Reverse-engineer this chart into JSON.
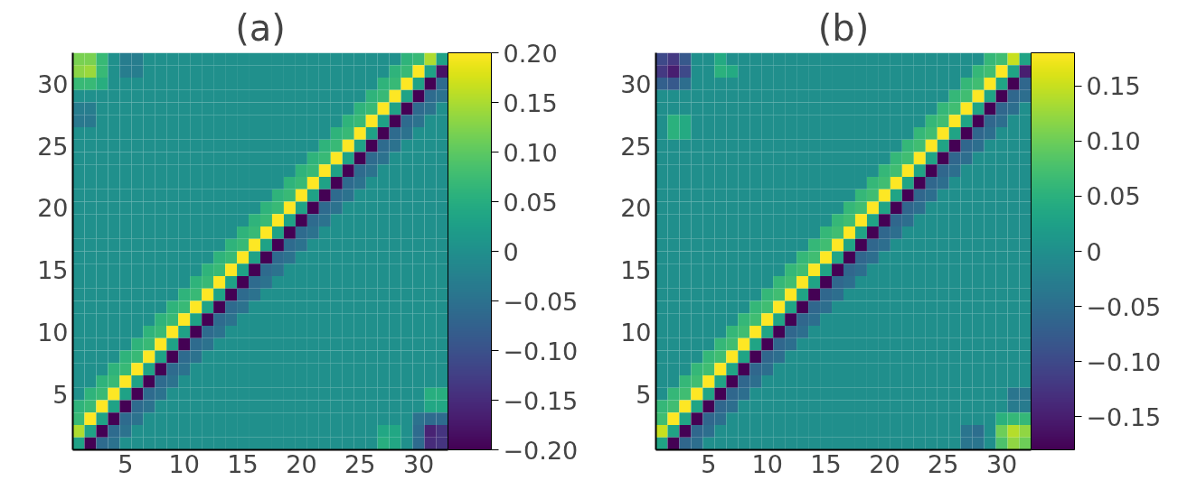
{
  "chart_data": [
    {
      "type": "heatmap",
      "title": "(a)",
      "x": [
        1,
        2,
        3,
        4,
        5,
        6,
        7,
        8,
        9,
        10,
        11,
        12,
        13,
        14,
        15,
        16,
        17,
        18,
        19,
        20,
        21,
        22,
        23,
        24,
        25,
        26,
        27,
        28,
        29,
        30,
        31,
        32
      ],
      "y": [
        32,
        31,
        30,
        29,
        28,
        27,
        26,
        25,
        24,
        23,
        22,
        21,
        20,
        19,
        18,
        17,
        16,
        15,
        14,
        13,
        12,
        11,
        10,
        9,
        8,
        7,
        6,
        5,
        4,
        3,
        2,
        1
      ],
      "xlim": [
        0.5,
        32.5
      ],
      "xticks": [
        5,
        10,
        15,
        20,
        25,
        30
      ],
      "ylim": [
        0.5,
        32.5
      ],
      "yticks": [
        5,
        10,
        15,
        20,
        25,
        30
      ],
      "clim": [
        -0.2,
        0.2
      ],
      "cticks": [
        {
          "value": 0.2,
          "label": "0.20"
        },
        0.15,
        {
          "value": 0.1,
          "label": "0.10"
        },
        0.05,
        0,
        {
          "value": -0.05,
          "label": "−0.05"
        },
        {
          "value": -0.1,
          "label": "−0.10"
        },
        {
          "value": -0.15,
          "label": "−0.15"
        },
        {
          "value": -0.2,
          "label": "−0.20"
        }
      ],
      "cells": [
        [
          0.12,
          0.12,
          0.07,
          0,
          -0.03,
          -0.03,
          0,
          0,
          0,
          0,
          0,
          0,
          0,
          0,
          0,
          0,
          0,
          0,
          0,
          0,
          0,
          0,
          0,
          0,
          0,
          0,
          0,
          0,
          0.06,
          0.07,
          0.15,
          0.03
        ],
        [
          0.13,
          0.14,
          0.07,
          0,
          -0.03,
          -0.03,
          0,
          0,
          0,
          0,
          0,
          0,
          0,
          0,
          0,
          0,
          0,
          0,
          0,
          0,
          0,
          0,
          0,
          0,
          0,
          0,
          0,
          0.06,
          0.07,
          0.2,
          0.03,
          -0.18
        ],
        [
          0.07,
          0.07,
          0.05,
          0,
          0,
          0,
          0,
          0,
          0,
          0,
          0,
          0,
          0,
          0,
          0,
          0,
          0,
          0,
          0,
          0,
          0,
          0,
          0,
          0,
          0,
          0,
          0.06,
          0.07,
          0.2,
          0.03,
          -0.2,
          -0.06
        ],
        [
          0,
          0,
          0,
          0,
          0,
          0,
          0,
          0,
          0,
          0,
          0,
          0,
          0,
          0,
          0,
          0,
          0,
          0,
          0,
          0,
          0,
          0,
          0,
          0,
          0,
          0.06,
          0.07,
          0.2,
          0.03,
          -0.2,
          -0.06,
          -0.05
        ],
        [
          -0.03,
          -0.03,
          0,
          0,
          0,
          0,
          0,
          0,
          0,
          0,
          0,
          0,
          0,
          0,
          0,
          0,
          0,
          0,
          0,
          0,
          0,
          0,
          0,
          0,
          0.06,
          0.07,
          0.2,
          0.03,
          -0.2,
          -0.06,
          -0.05,
          0
        ],
        [
          -0.04,
          -0.04,
          0,
          0,
          0,
          0,
          0,
          0,
          0,
          0,
          0,
          0,
          0,
          0,
          0,
          0,
          0,
          0,
          0,
          0,
          0,
          0,
          0,
          0.06,
          0.07,
          0.2,
          0.03,
          -0.2,
          -0.06,
          -0.05,
          0,
          0
        ],
        [
          0,
          0,
          0,
          0,
          0,
          0,
          0,
          0,
          0,
          0,
          0,
          0,
          0,
          0,
          0,
          0,
          0,
          0,
          0,
          0,
          0,
          0,
          0.06,
          0.07,
          0.2,
          0.03,
          -0.2,
          -0.06,
          -0.05,
          0,
          0,
          0
        ],
        [
          0,
          0,
          0,
          0,
          0,
          0,
          0,
          0,
          0,
          0,
          0,
          0,
          0,
          0,
          0,
          0,
          0,
          0,
          0,
          0,
          0,
          0.06,
          0.07,
          0.2,
          0.03,
          -0.2,
          -0.06,
          -0.05,
          0,
          0,
          0,
          0
        ],
        [
          0,
          0,
          0,
          0,
          0,
          0,
          0,
          0,
          0,
          0,
          0,
          0,
          0,
          0,
          0,
          0,
          0,
          0,
          0,
          0,
          0.06,
          0.07,
          0.2,
          0.03,
          -0.2,
          -0.06,
          -0.05,
          0,
          0,
          0,
          0,
          0
        ],
        [
          0,
          0,
          0,
          0,
          0,
          0,
          0,
          0,
          0,
          0,
          0,
          0,
          0,
          0,
          0,
          0,
          0,
          0,
          0,
          0.06,
          0.07,
          0.2,
          0.03,
          -0.2,
          -0.06,
          -0.05,
          0,
          0,
          0,
          0,
          0,
          0
        ],
        [
          0,
          0,
          0,
          0,
          0,
          0,
          0,
          0,
          0,
          0,
          0,
          0,
          0,
          0,
          0,
          0,
          0,
          0,
          0.06,
          0.07,
          0.2,
          0.03,
          -0.2,
          -0.06,
          -0.05,
          0,
          0,
          0,
          0,
          0,
          0,
          0
        ],
        [
          0,
          0,
          0,
          0,
          0,
          0,
          0,
          0,
          0,
          0,
          0,
          0,
          0,
          0,
          0,
          0,
          0,
          0.06,
          0.07,
          0.2,
          0.03,
          -0.2,
          -0.06,
          -0.05,
          0,
          0,
          0,
          0,
          0,
          0,
          0,
          0
        ],
        [
          0,
          0,
          0,
          0,
          0,
          0,
          0,
          0,
          0,
          0,
          0,
          0,
          0,
          0,
          0,
          0,
          0.06,
          0.07,
          0.2,
          0.03,
          -0.2,
          -0.06,
          -0.05,
          0,
          0,
          0,
          0,
          0,
          0,
          0,
          0,
          0
        ],
        [
          0,
          0,
          0,
          0,
          0,
          0,
          0,
          0,
          0,
          0,
          0,
          0,
          0,
          0,
          0,
          0.06,
          0.07,
          0.2,
          0.03,
          -0.2,
          -0.06,
          -0.05,
          0,
          0,
          0,
          0,
          0,
          0,
          0,
          0,
          0,
          0
        ],
        [
          0,
          0,
          0,
          0,
          0,
          0,
          0,
          0,
          0,
          0,
          0,
          0,
          0,
          0,
          0.06,
          0.07,
          0.2,
          0.03,
          -0.2,
          -0.06,
          -0.05,
          0,
          0,
          0,
          0,
          0,
          0,
          0,
          0,
          0,
          0,
          0
        ],
        [
          0,
          0,
          0,
          0,
          0,
          0,
          0,
          0,
          0,
          0,
          0,
          0,
          0,
          0.06,
          0.07,
          0.2,
          0.03,
          -0.2,
          -0.06,
          -0.05,
          0,
          0,
          0,
          0,
          0,
          0,
          0,
          0,
          0,
          0,
          0,
          0
        ],
        [
          0,
          0,
          0,
          0,
          0,
          0,
          0,
          0,
          0,
          0,
          0,
          0,
          0.06,
          0.07,
          0.2,
          0.03,
          -0.2,
          -0.06,
          -0.05,
          0,
          0,
          0,
          0,
          0,
          0,
          0,
          0,
          0,
          0,
          0,
          0,
          0
        ],
        [
          0,
          0,
          0,
          0,
          0,
          0,
          0,
          0,
          0,
          0,
          0,
          0.06,
          0.07,
          0.2,
          0.03,
          -0.2,
          -0.06,
          -0.05,
          0,
          0,
          0,
          0,
          0,
          0,
          0,
          0,
          0,
          0,
          0,
          0,
          0,
          0
        ],
        [
          0,
          0,
          0,
          0,
          0,
          0,
          0,
          0,
          0,
          0,
          0.06,
          0.07,
          0.2,
          0.03,
          -0.2,
          -0.06,
          -0.05,
          0,
          0,
          0,
          0,
          0,
          0,
          0,
          0,
          0,
          0,
          0,
          0,
          0,
          0,
          0
        ],
        [
          0,
          0,
          0,
          0,
          0,
          0,
          0,
          0,
          0,
          0.06,
          0.07,
          0.2,
          0.03,
          -0.2,
          -0.06,
          -0.05,
          0,
          0,
          0,
          0,
          0,
          0,
          0,
          0,
          0,
          0,
          0,
          0,
          0,
          0,
          0,
          0
        ],
        [
          0,
          0,
          0,
          0,
          0,
          0,
          0,
          0,
          0.06,
          0.07,
          0.2,
          0.03,
          -0.2,
          -0.06,
          -0.05,
          0,
          0,
          0,
          0,
          0,
          0,
          0,
          0,
          0,
          0,
          0,
          0,
          0,
          0,
          0,
          0,
          0
        ],
        [
          0,
          0,
          0,
          0,
          0,
          0,
          0,
          0.06,
          0.07,
          0.2,
          0.03,
          -0.2,
          -0.06,
          -0.05,
          0,
          0,
          0,
          0,
          0,
          0,
          0,
          0,
          0,
          0,
          0,
          0,
          0,
          0,
          0,
          0,
          0,
          0
        ],
        [
          0,
          0,
          0,
          0,
          0,
          0,
          0.06,
          0.07,
          0.2,
          0.03,
          -0.2,
          -0.06,
          -0.05,
          0,
          0,
          0,
          0,
          0,
          0,
          0,
          0,
          0,
          0,
          0,
          0,
          0,
          0,
          0,
          0,
          0,
          0,
          0
        ],
        [
          0,
          0,
          0,
          0,
          0,
          0.06,
          0.07,
          0.2,
          0.03,
          -0.2,
          -0.06,
          -0.05,
          0,
          0,
          0,
          0,
          0,
          0,
          0,
          0,
          0,
          0,
          0,
          0,
          0,
          0,
          0,
          0,
          0,
          0,
          0,
          0
        ],
        [
          0,
          0,
          0,
          0,
          0.06,
          0.07,
          0.2,
          0.03,
          -0.2,
          -0.06,
          -0.05,
          0,
          0,
          0,
          0,
          0,
          0,
          0,
          0,
          0,
          0,
          0,
          0,
          0,
          0,
          0,
          0,
          0,
          0,
          0,
          0,
          0
        ],
        [
          0,
          0,
          0,
          0.06,
          0.07,
          0.2,
          0.03,
          -0.2,
          -0.06,
          -0.05,
          0,
          0,
          0,
          0,
          0,
          0,
          0,
          0,
          0,
          0,
          0,
          0,
          0,
          0,
          0,
          0,
          0,
          0,
          0,
          0,
          0,
          0
        ],
        [
          0,
          0,
          0.06,
          0.07,
          0.2,
          0.03,
          -0.2,
          -0.06,
          -0.05,
          0,
          0,
          0,
          0,
          0,
          0,
          0,
          0,
          0,
          0,
          0,
          0,
          0,
          0,
          0,
          0,
          0,
          0,
          0,
          0,
          0,
          0,
          0
        ],
        [
          0,
          0.06,
          0.07,
          0.2,
          0.03,
          -0.2,
          -0.06,
          -0.05,
          0,
          0,
          0,
          0,
          0,
          0,
          0,
          0,
          0,
          0,
          0,
          0,
          0,
          0,
          0,
          0,
          0,
          0,
          0,
          0,
          0,
          0,
          0.05,
          0.05
        ],
        [
          0.06,
          0.07,
          0.2,
          0.03,
          -0.2,
          -0.06,
          -0.05,
          0,
          0,
          0,
          0,
          0,
          0,
          0,
          0,
          0,
          0,
          0,
          0,
          0,
          0,
          0,
          0,
          0,
          0,
          0,
          0,
          0,
          0,
          0,
          0.04,
          0.04
        ],
        [
          0.07,
          0.2,
          0.03,
          -0.2,
          -0.06,
          -0.05,
          0,
          0,
          0,
          0,
          0,
          0,
          0,
          0,
          0,
          0,
          0,
          0,
          0,
          0,
          0,
          0,
          0,
          0,
          0,
          0,
          0,
          0,
          0,
          -0.05,
          -0.06,
          -0.06
        ],
        [
          0.15,
          0.03,
          -0.2,
          -0.06,
          -0.05,
          0,
          0,
          0,
          0,
          0,
          0,
          0,
          0,
          0,
          0,
          0,
          0,
          0,
          0,
          0,
          0,
          0,
          0,
          0,
          0,
          0,
          0.04,
          0.04,
          0,
          -0.06,
          -0.16,
          -0.14
        ],
        [
          0.03,
          -0.2,
          -0.06,
          -0.05,
          0,
          0,
          0,
          0,
          0,
          0,
          0,
          0,
          0,
          0,
          0,
          0,
          0,
          0,
          0,
          0,
          0,
          0,
          0,
          0,
          0,
          0,
          0.05,
          0.04,
          0,
          -0.06,
          -0.15,
          -0.14
        ]
      ]
    },
    {
      "type": "heatmap",
      "title": "(b)",
      "x": [
        1,
        2,
        3,
        4,
        5,
        6,
        7,
        8,
        9,
        10,
        11,
        12,
        13,
        14,
        15,
        16,
        17,
        18,
        19,
        20,
        21,
        22,
        23,
        24,
        25,
        26,
        27,
        28,
        29,
        30,
        31,
        32
      ],
      "y": [
        32,
        31,
        30,
        29,
        28,
        27,
        26,
        25,
        24,
        23,
        22,
        21,
        20,
        19,
        18,
        17,
        16,
        15,
        14,
        13,
        12,
        11,
        10,
        9,
        8,
        7,
        6,
        5,
        4,
        3,
        2,
        1
      ],
      "xlim": [
        0.5,
        32.5
      ],
      "xticks": [
        5,
        10,
        15,
        20,
        25,
        30
      ],
      "ylim": [
        0.5,
        32.5
      ],
      "yticks": [
        5,
        10,
        15,
        20,
        25,
        30
      ],
      "clim": [
        -0.18,
        0.18
      ],
      "cticks": [
        0.15,
        {
          "value": 0.1,
          "label": "0.10"
        },
        0.05,
        0,
        {
          "value": -0.05,
          "label": "−0.05"
        },
        {
          "value": -0.1,
          "label": "−0.10"
        },
        {
          "value": -0.15,
          "label": "−0.15"
        }
      ],
      "cells": [
        [
          -0.1,
          -0.12,
          -0.08,
          0,
          0,
          0.04,
          0,
          0,
          0,
          0,
          0,
          0,
          0,
          0,
          0,
          0,
          0,
          0,
          0,
          0,
          0,
          0,
          0,
          0,
          0,
          0,
          0,
          0,
          0.06,
          0.07,
          0.15,
          0.03
        ],
        [
          -0.12,
          -0.15,
          -0.1,
          0,
          0,
          0.05,
          0.04,
          0,
          0,
          0,
          0,
          0,
          0,
          0,
          0,
          0,
          0,
          0,
          0,
          0,
          0,
          0,
          0,
          0,
          0,
          0,
          0,
          0.06,
          0.07,
          0.18,
          0.03,
          -0.15
        ],
        [
          -0.07,
          -0.08,
          -0.05,
          0,
          0,
          0,
          0,
          0,
          0,
          0,
          0,
          0,
          0,
          0,
          0,
          0,
          0,
          0,
          0,
          0,
          0,
          0,
          0,
          0,
          0,
          0,
          0.06,
          0.07,
          0.18,
          0.03,
          -0.18,
          -0.06
        ],
        [
          0,
          0,
          0,
          0,
          0,
          0,
          0,
          0,
          0,
          0,
          0,
          0,
          0,
          0,
          0,
          0,
          0,
          0,
          0,
          0,
          0,
          0,
          0,
          0,
          0,
          0.06,
          0.07,
          0.18,
          0.03,
          -0.18,
          -0.06,
          -0.05
        ],
        [
          0,
          0,
          0,
          0,
          0,
          0,
          0,
          0,
          0,
          0,
          0,
          0,
          0,
          0,
          0,
          0,
          0,
          0,
          0,
          0,
          0,
          0,
          0,
          0,
          0.06,
          0.07,
          0.18,
          0.03,
          -0.18,
          -0.06,
          -0.05,
          0
        ],
        [
          0,
          0.05,
          0.04,
          0,
          0,
          0,
          0,
          0,
          0,
          0,
          0,
          0,
          0,
          0,
          0,
          0,
          0,
          0,
          0,
          0,
          0,
          0,
          0,
          0.06,
          0.07,
          0.18,
          0.03,
          -0.18,
          -0.06,
          -0.05,
          0,
          0
        ],
        [
          0,
          0.05,
          0.04,
          0,
          0,
          0,
          0,
          0,
          0,
          0,
          0,
          0,
          0,
          0,
          0,
          0,
          0,
          0,
          0,
          0,
          0,
          0,
          0.06,
          0.07,
          0.18,
          0.03,
          -0.18,
          -0.06,
          -0.05,
          0,
          0,
          0
        ],
        [
          0,
          0,
          0,
          0,
          0,
          0,
          0,
          0,
          0,
          0,
          0,
          0,
          0,
          0,
          0,
          0,
          0,
          0,
          0,
          0,
          0,
          0.06,
          0.07,
          0.18,
          0.03,
          -0.18,
          -0.06,
          -0.05,
          0,
          0,
          0,
          0
        ],
        [
          0,
          0,
          0,
          0,
          0,
          0,
          0,
          0,
          0,
          0,
          0,
          0,
          0,
          0,
          0,
          0,
          0,
          0,
          0,
          0,
          0.06,
          0.07,
          0.18,
          0.03,
          -0.18,
          -0.06,
          -0.05,
          0,
          0,
          0,
          0,
          0
        ],
        [
          0,
          0,
          0,
          0,
          0,
          0,
          0,
          0,
          0,
          0,
          0,
          0,
          0,
          0,
          0,
          0,
          0,
          0,
          0,
          0.06,
          0.07,
          0.18,
          0.03,
          -0.18,
          -0.06,
          -0.05,
          0,
          0,
          0,
          0,
          0,
          0
        ],
        [
          0,
          0,
          0,
          0,
          0,
          0,
          0,
          0,
          0,
          0,
          0,
          0,
          0,
          0,
          0,
          0,
          0,
          0,
          0.06,
          0.07,
          0.18,
          0.03,
          -0.18,
          -0.06,
          -0.05,
          0,
          0,
          0,
          0,
          0,
          0,
          0
        ],
        [
          0,
          0,
          0,
          0,
          0,
          0,
          0,
          0,
          0,
          0,
          0,
          0,
          0,
          0,
          0,
          0,
          0,
          0.06,
          0.07,
          0.18,
          0.03,
          -0.18,
          -0.06,
          -0.05,
          0,
          0,
          0,
          0,
          0,
          0,
          0,
          0
        ],
        [
          0,
          0,
          0,
          0,
          0,
          0,
          0,
          0,
          0,
          0,
          0,
          0,
          0,
          0,
          0,
          0,
          0.06,
          0.07,
          0.18,
          0.03,
          -0.18,
          -0.06,
          -0.05,
          0,
          0,
          0,
          0,
          0,
          0,
          0,
          0,
          0
        ],
        [
          0,
          0,
          0,
          0,
          0,
          0,
          0,
          0,
          0,
          0,
          0,
          0,
          0,
          0,
          0,
          0.06,
          0.07,
          0.18,
          0.03,
          -0.18,
          -0.06,
          -0.05,
          0,
          0,
          0,
          0,
          0,
          0,
          0,
          0,
          0,
          0
        ],
        [
          0,
          0,
          0,
          0,
          0,
          0,
          0,
          0,
          0,
          0,
          0,
          0,
          0,
          0,
          0.06,
          0.07,
          0.18,
          0.03,
          -0.18,
          -0.06,
          -0.05,
          0,
          0,
          0,
          0,
          0,
          0,
          0,
          0,
          0,
          0,
          0
        ],
        [
          0,
          0,
          0,
          0,
          0,
          0,
          0,
          0,
          0,
          0,
          0,
          0,
          0,
          0.06,
          0.07,
          0.18,
          0.03,
          -0.18,
          -0.06,
          -0.05,
          0,
          0,
          0,
          0,
          0,
          0,
          0,
          0,
          0,
          0,
          0,
          0
        ],
        [
          0,
          0,
          0,
          0,
          0,
          0,
          0,
          0,
          0,
          0,
          0,
          0,
          0.06,
          0.07,
          0.18,
          0.03,
          -0.18,
          -0.06,
          -0.05,
          0,
          0,
          0,
          0,
          0,
          0,
          0,
          0,
          0,
          0,
          0,
          0,
          0
        ],
        [
          0,
          0,
          0,
          0,
          0,
          0,
          0,
          0,
          0,
          0,
          0,
          0.06,
          0.07,
          0.18,
          0.03,
          -0.18,
          -0.06,
          -0.05,
          0,
          0,
          0,
          0,
          0,
          0,
          0,
          0,
          0,
          0,
          0,
          0,
          0,
          0
        ],
        [
          0,
          0,
          0,
          0,
          0,
          0,
          0,
          0,
          0,
          0,
          0.06,
          0.07,
          0.18,
          0.03,
          -0.18,
          -0.06,
          -0.05,
          0,
          0,
          0,
          0,
          0,
          0,
          0,
          0,
          0,
          0,
          0,
          0,
          0,
          0,
          0
        ],
        [
          0,
          0,
          0,
          0,
          0,
          0,
          0,
          0,
          0,
          0.06,
          0.07,
          0.18,
          0.03,
          -0.18,
          -0.06,
          -0.05,
          0,
          0,
          0,
          0,
          0,
          0,
          0,
          0,
          0,
          0,
          0,
          0,
          0,
          0,
          0,
          0
        ],
        [
          0,
          0,
          0,
          0,
          0,
          0,
          0,
          0,
          0.06,
          0.07,
          0.18,
          0.03,
          -0.18,
          -0.06,
          -0.05,
          0,
          0,
          0,
          0,
          0,
          0,
          0,
          0,
          0,
          0,
          0,
          0,
          0,
          0,
          0,
          0,
          0
        ],
        [
          0,
          0,
          0,
          0,
          0,
          0,
          0,
          0.06,
          0.07,
          0.18,
          0.03,
          -0.18,
          -0.06,
          -0.05,
          0,
          0,
          0,
          0,
          0,
          0,
          0,
          0,
          0,
          0,
          0,
          0,
          0,
          0,
          0,
          0,
          0,
          0
        ],
        [
          0,
          0,
          0,
          0,
          0,
          0,
          0.06,
          0.07,
          0.18,
          0.03,
          -0.18,
          -0.06,
          -0.05,
          0,
          0,
          0,
          0,
          0,
          0,
          0,
          0,
          0,
          0,
          0,
          0,
          0,
          0,
          0,
          0,
          0,
          0,
          0
        ],
        [
          0,
          0,
          0,
          0,
          0,
          0.06,
          0.07,
          0.18,
          0.03,
          -0.18,
          -0.06,
          -0.05,
          0,
          0,
          0,
          0,
          0,
          0,
          0,
          0,
          0,
          0,
          0,
          0,
          0,
          0,
          0,
          0,
          0,
          0,
          0,
          0
        ],
        [
          0,
          0,
          0,
          0,
          0.06,
          0.07,
          0.18,
          0.03,
          -0.18,
          -0.06,
          -0.05,
          0,
          0,
          0,
          0,
          0,
          0,
          0,
          0,
          0,
          0,
          0,
          0,
          0,
          0,
          0,
          0,
          0,
          0,
          0,
          0,
          0
        ],
        [
          0,
          0,
          0,
          0.06,
          0.07,
          0.18,
          0.03,
          -0.18,
          -0.06,
          -0.05,
          0,
          0,
          0,
          0,
          0,
          0,
          0,
          0,
          0,
          0,
          0,
          0,
          0,
          0,
          0,
          0,
          0,
          0,
          0,
          0,
          0,
          0
        ],
        [
          0,
          0,
          0.06,
          0.07,
          0.18,
          0.03,
          -0.18,
          -0.06,
          -0.05,
          0,
          0,
          0,
          0,
          0,
          0,
          0,
          0,
          0,
          0,
          0,
          0,
          0,
          0,
          0,
          0,
          0,
          0,
          0,
          0,
          0,
          0,
          0
        ],
        [
          0,
          0.06,
          0.07,
          0.18,
          0.03,
          -0.18,
          -0.06,
          -0.05,
          0,
          0,
          0,
          0,
          0,
          0,
          0,
          0,
          0,
          0,
          0,
          0,
          0,
          0,
          0,
          0,
          0,
          0,
          0,
          0,
          0,
          0,
          -0.04,
          -0.04
        ],
        [
          0.06,
          0.07,
          0.18,
          0.03,
          -0.18,
          -0.06,
          -0.05,
          0,
          0,
          0,
          0,
          0,
          0,
          0,
          0,
          0,
          0,
          0,
          0,
          0,
          0,
          0,
          0,
          0,
          0,
          0,
          0,
          0,
          0,
          0,
          -0.03,
          -0.03
        ],
        [
          0.07,
          0.18,
          0.03,
          -0.18,
          -0.06,
          -0.05,
          0,
          0,
          0,
          0,
          0,
          0,
          0,
          0,
          0,
          0,
          0,
          0,
          0,
          0,
          0,
          0,
          0,
          0,
          0,
          0,
          0,
          0,
          0,
          0.05,
          0.06,
          0.06
        ],
        [
          0.15,
          0.03,
          -0.18,
          -0.06,
          -0.05,
          0,
          0,
          0,
          0,
          0,
          0,
          0,
          0,
          0,
          0,
          0,
          0,
          0,
          0,
          0,
          0,
          0,
          0,
          0,
          0,
          0,
          -0.04,
          -0.05,
          0,
          0.1,
          0.14,
          0.12
        ],
        [
          0.03,
          -0.18,
          -0.06,
          -0.05,
          0,
          0,
          0,
          0,
          0,
          0,
          0,
          0,
          0,
          0,
          0,
          0,
          0,
          0,
          0,
          0,
          0,
          0,
          0,
          0,
          0,
          0,
          -0.04,
          -0.04,
          0,
          0.08,
          0.12,
          0.1
        ]
      ]
    }
  ]
}
